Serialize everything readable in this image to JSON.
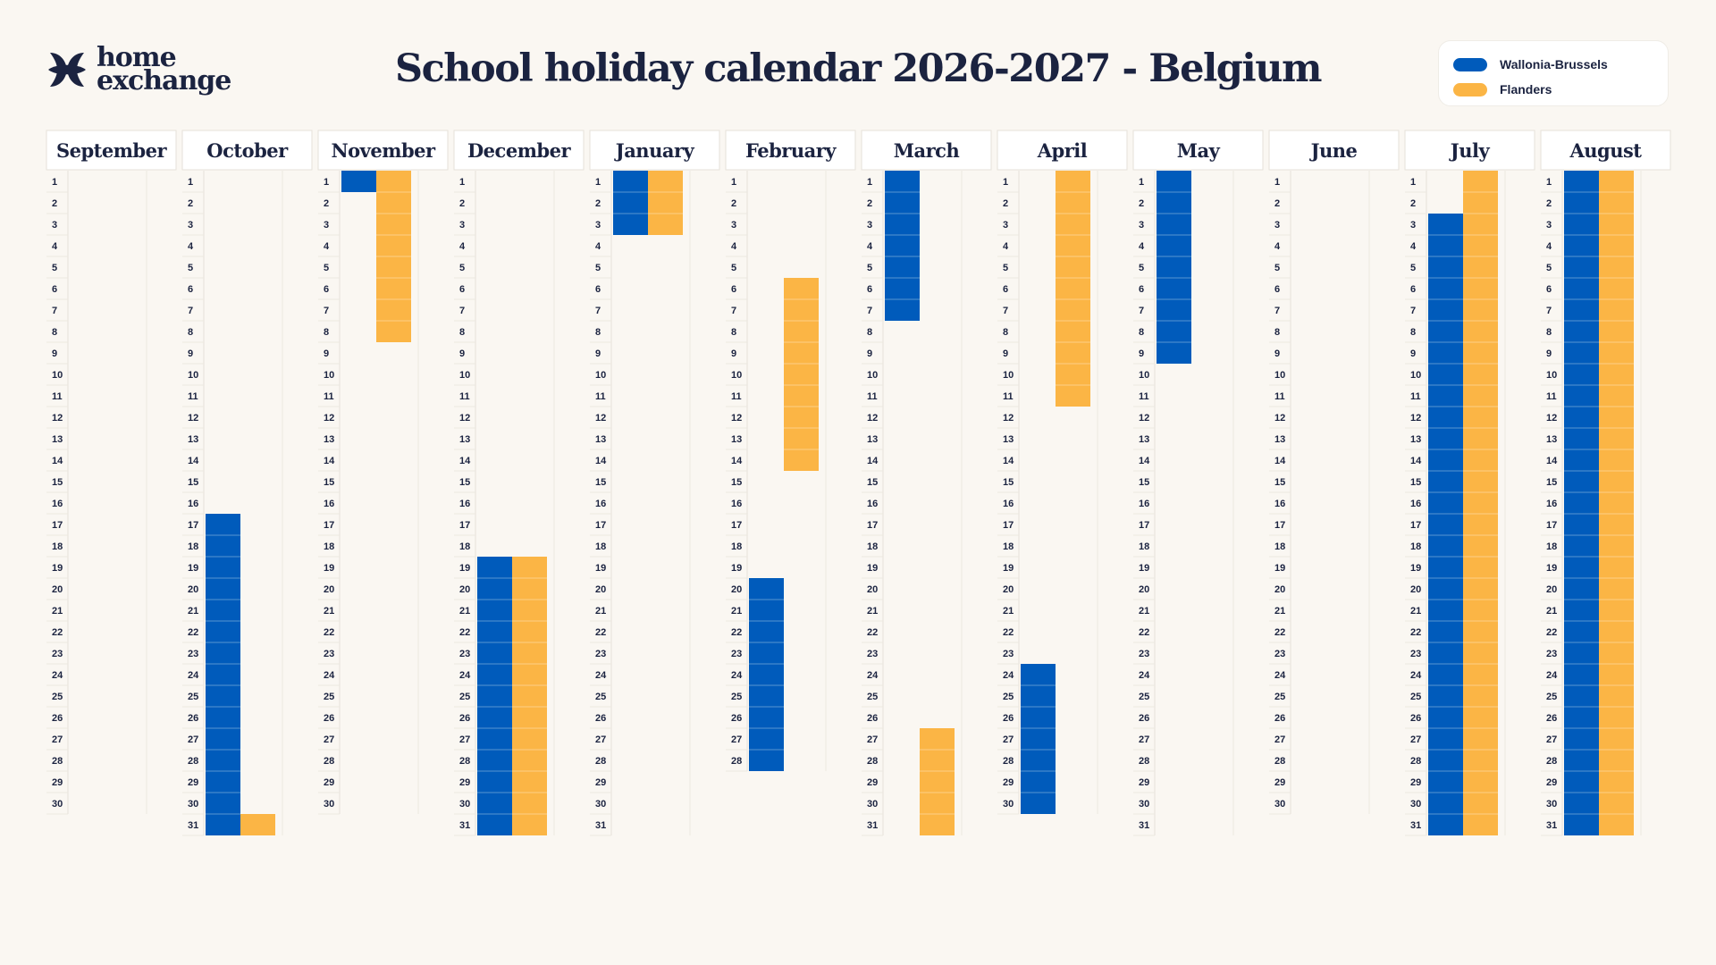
{
  "brand": {
    "line1": "home",
    "line2": "exchange",
    "logo_icon": "homeexchange-logo-icon"
  },
  "title": "School holiday calendar 2026-2027 - Belgium",
  "legend": [
    {
      "label": "Wallonia-Brussels",
      "color": "#005bbb"
    },
    {
      "label": "Flanders",
      "color": "#fbb545"
    }
  ],
  "months": [
    {
      "name": "September",
      "days": 30,
      "wallonia": [],
      "flanders": []
    },
    {
      "name": "October",
      "days": 31,
      "wallonia": [
        [
          17,
          31
        ]
      ],
      "flanders": [
        [
          31,
          31
        ]
      ]
    },
    {
      "name": "November",
      "days": 30,
      "wallonia": [
        [
          1,
          1
        ]
      ],
      "flanders": [
        [
          1,
          8
        ]
      ]
    },
    {
      "name": "December",
      "days": 31,
      "wallonia": [
        [
          19,
          31
        ]
      ],
      "flanders": [
        [
          19,
          31
        ]
      ]
    },
    {
      "name": "January",
      "days": 31,
      "wallonia": [
        [
          1,
          3
        ]
      ],
      "flanders": [
        [
          1,
          3
        ]
      ]
    },
    {
      "name": "February",
      "days": 28,
      "wallonia": [
        [
          20,
          28
        ]
      ],
      "flanders": [
        [
          6,
          14
        ]
      ]
    },
    {
      "name": "March",
      "days": 31,
      "wallonia": [
        [
          1,
          7
        ]
      ],
      "flanders": [
        [
          27,
          31
        ]
      ]
    },
    {
      "name": "April",
      "days": 30,
      "wallonia": [
        [
          24,
          30
        ]
      ],
      "flanders": [
        [
          1,
          11
        ]
      ]
    },
    {
      "name": "May",
      "days": 31,
      "wallonia": [
        [
          1,
          9
        ]
      ],
      "flanders": []
    },
    {
      "name": "June",
      "days": 30,
      "wallonia": [],
      "flanders": []
    },
    {
      "name": "July",
      "days": 31,
      "wallonia": [
        [
          3,
          31
        ]
      ],
      "flanders": [
        [
          1,
          31
        ]
      ]
    },
    {
      "name": "August",
      "days": 31,
      "wallonia": [
        [
          1,
          31
        ]
      ],
      "flanders": [
        [
          1,
          31
        ]
      ]
    }
  ]
}
